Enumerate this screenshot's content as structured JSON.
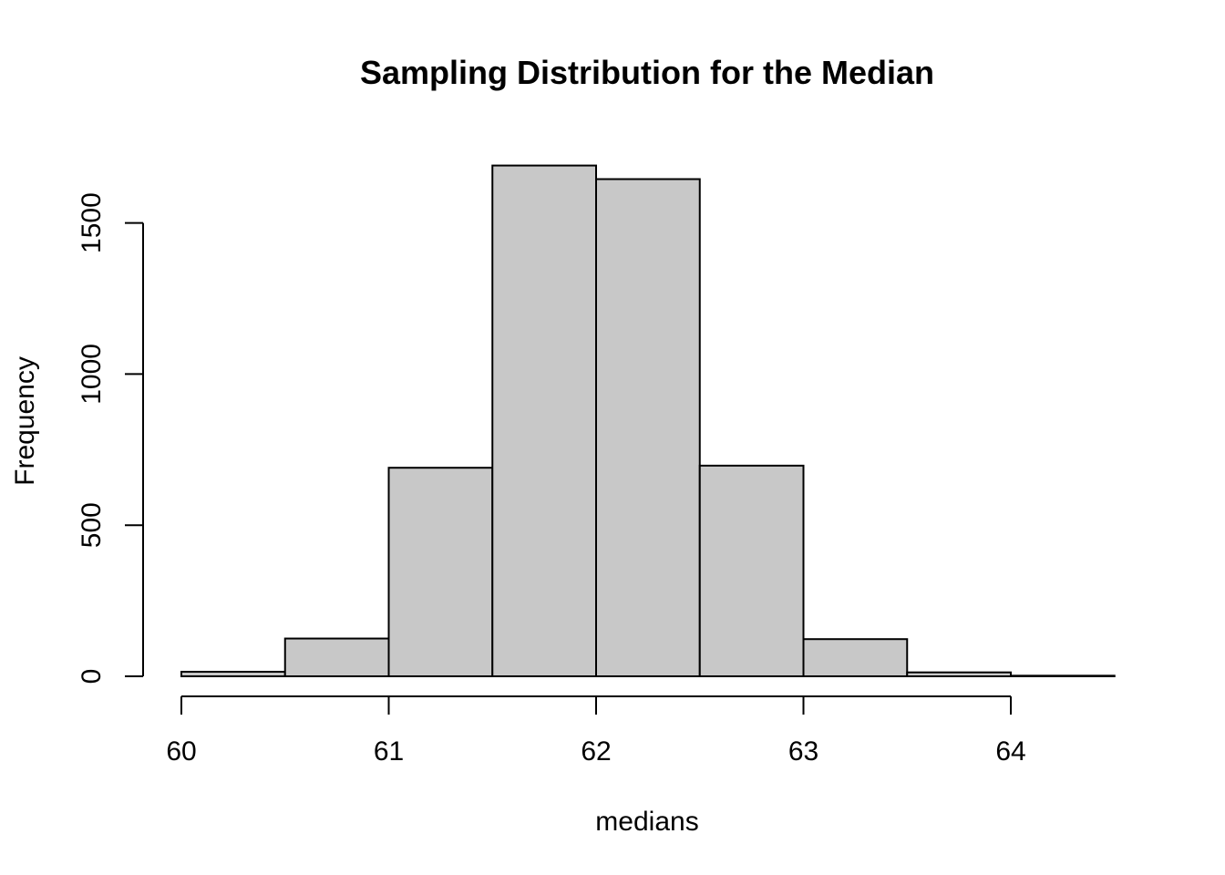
{
  "chart_data": {
    "type": "bar",
    "title": "Sampling Distribution for the Median",
    "xlabel": "medians",
    "ylabel": "Frequency",
    "bins": [
      {
        "start": 60.0,
        "end": 60.5,
        "count": 15
      },
      {
        "start": 60.5,
        "end": 61.0,
        "count": 125
      },
      {
        "start": 61.0,
        "end": 61.5,
        "count": 690
      },
      {
        "start": 61.5,
        "end": 62.0,
        "count": 1690
      },
      {
        "start": 62.0,
        "end": 62.5,
        "count": 1645
      },
      {
        "start": 62.5,
        "end": 63.0,
        "count": 697
      },
      {
        "start": 63.0,
        "end": 63.5,
        "count": 123
      },
      {
        "start": 63.5,
        "end": 64.0,
        "count": 13
      },
      {
        "start": 64.0,
        "end": 64.5,
        "count": 2
      }
    ],
    "xticks": [
      "60",
      "61",
      "62",
      "63",
      "64"
    ],
    "yticks": [
      "0",
      "500",
      "1000",
      "1500"
    ],
    "xlim": [
      60,
      64.5
    ],
    "ylim": [
      0,
      1690
    ],
    "bar_color": "#c8c8c8",
    "grid": false
  }
}
